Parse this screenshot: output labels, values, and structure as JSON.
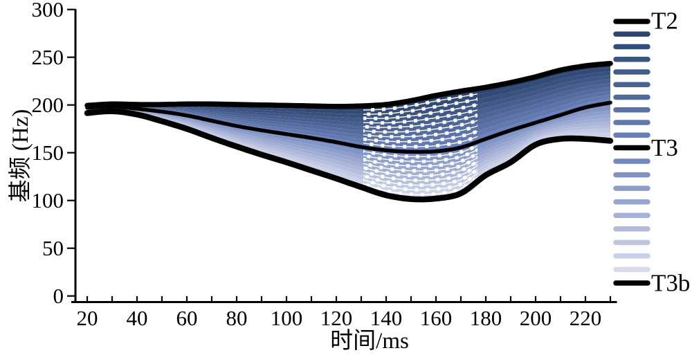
{
  "figure": {
    "background": "#ffffff",
    "axis_color": "#000000"
  },
  "chart_data": {
    "type": "line",
    "title": "",
    "xlabel": "时间/ms",
    "ylabel": "基频 (Hz)",
    "xlim": [
      14,
      233
    ],
    "ylim": [
      0,
      300
    ],
    "grid": false,
    "x_tick_interval": 10,
    "x_label_interval": 20,
    "x_tick_labels": [
      "20",
      "40",
      "60",
      "80",
      "100",
      "120",
      "140",
      "160",
      "180",
      "200",
      "220"
    ],
    "y_tick_labels": [
      "0",
      "50",
      "100",
      "150",
      "200",
      "250",
      "300"
    ],
    "x": [
      20,
      30,
      40,
      50,
      60,
      70,
      80,
      90,
      100,
      110,
      120,
      130,
      140,
      150,
      160,
      170,
      180,
      190,
      200,
      210,
      220,
      230
    ],
    "series": [
      {
        "name": "T2",
        "color": "#000000",
        "stroke_width": 7.5,
        "values": [
          199.5,
          201,
          200.5,
          200.5,
          201,
          201,
          200.5,
          200,
          199.5,
          199,
          198.5,
          199,
          200.5,
          204.5,
          210,
          214.5,
          218.5,
          223.5,
          229.5,
          236.5,
          241,
          243.5
        ]
      },
      {
        "name": "T3",
        "color": "#000000",
        "stroke_width": 5.5,
        "values": [
          197,
          198.5,
          196,
          193,
          189,
          183.5,
          178,
          173.5,
          169.5,
          165.5,
          161,
          156,
          152.5,
          151,
          151.5,
          155.5,
          164.5,
          173.5,
          181.5,
          189.5,
          197.5,
          202.5
        ]
      },
      {
        "name": "T3b",
        "color": "#000000",
        "stroke_width": 8.5,
        "values": [
          191.5,
          193.5,
          190,
          183,
          175,
          165.5,
          156.5,
          148,
          140,
          131.5,
          123,
          114,
          105.5,
          101.5,
          102,
          107.5,
          126.5,
          140,
          158.5,
          164.5,
          164.5,
          162.5
        ]
      }
    ],
    "continuum": {
      "steps_between_references": 9,
      "style": "dashed-interpolated-steps",
      "upper_band_top_color": "#264069",
      "upper_band_bottom_color": "#6e84be",
      "lower_band_top_color": "#7488c0",
      "lower_band_bottom_color": "#dadeee"
    },
    "legend": {
      "position": "right",
      "labels": [
        "T2",
        "T3",
        "T3b"
      ],
      "swatches": [
        "#000000",
        "#2b4770",
        "#334e79",
        "#3a5582",
        "#425c8b",
        "#4a6394",
        "#516a9d",
        "#5971a6",
        "#6078af",
        "#687eb9",
        "#000000",
        "#7488c0",
        "#8092c5",
        "#8d9dcb",
        "#99a7d0",
        "#a5b1d6",
        "#b1bbdb",
        "#bec6e0",
        "#cad0e6",
        "#d6daeb",
        "#000000"
      ]
    }
  }
}
